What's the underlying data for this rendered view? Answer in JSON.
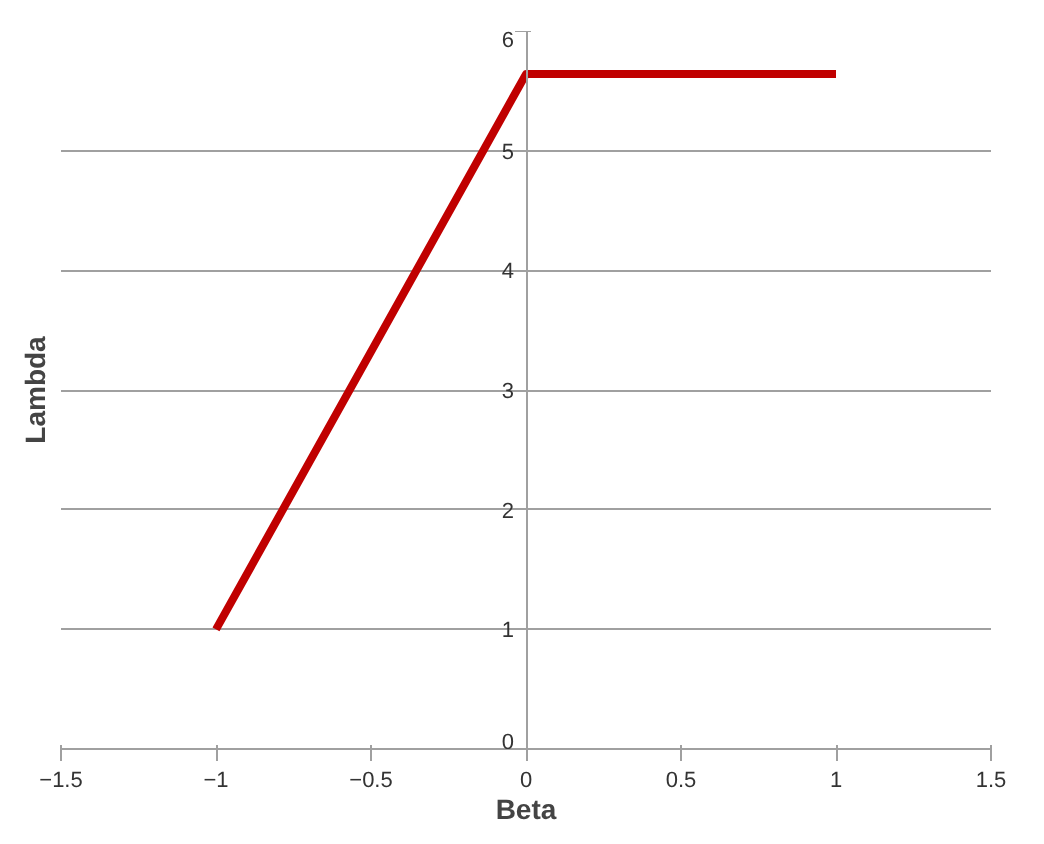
{
  "chart_data": {
    "type": "line",
    "xlabel": "Beta",
    "ylabel": "Lambda",
    "x": [
      -1,
      0,
      1
    ],
    "series": [
      {
        "color": "#c00000",
        "values": [
          1,
          5.64,
          5.64
        ]
      }
    ],
    "xlim": [
      -1.5,
      1.5
    ],
    "xticks": [
      -1.5,
      -1,
      -0.5,
      0,
      0.5,
      1,
      1.5
    ],
    "ylim": [
      0,
      6
    ],
    "yticks": [
      0,
      1,
      2,
      3,
      4,
      5,
      6
    ],
    "grid": "y",
    "marker": "none",
    "line_style": "solid"
  }
}
